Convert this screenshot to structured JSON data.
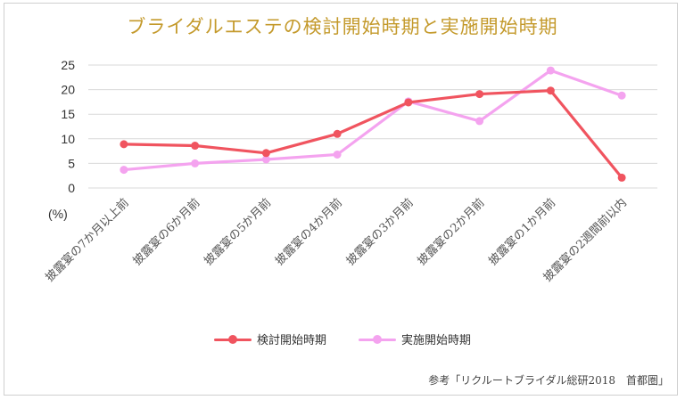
{
  "chart_data": {
    "type": "line",
    "title": "ブライダルエステの検討開始時期と実施開始時期",
    "ylabel": "(%)",
    "ylim": [
      0,
      25
    ],
    "yticks": [
      0,
      5,
      10,
      15,
      20,
      25
    ],
    "categories": [
      "披露宴の7か月以上前",
      "披露宴の6か月前",
      "披露宴の5か月前",
      "披露宴の4か月前",
      "披露宴の3か月前",
      "披露宴の2か月前",
      "披露宴の1か月前",
      "披露宴の2週間前以内"
    ],
    "series": [
      {
        "name": "検討開始時期",
        "color": "#f0545f",
        "values": [
          8.9,
          8.6,
          7.1,
          11.0,
          17.4,
          19.1,
          19.8,
          2.1
        ]
      },
      {
        "name": "実施開始時期",
        "color": "#f4a3ef",
        "values": [
          3.7,
          5.0,
          5.8,
          6.8,
          17.6,
          13.6,
          23.9,
          18.8
        ]
      }
    ],
    "grid": true,
    "legend_position": "bottom"
  },
  "source_note": "参考「リクルートブライダル総研2018　首都圏」"
}
